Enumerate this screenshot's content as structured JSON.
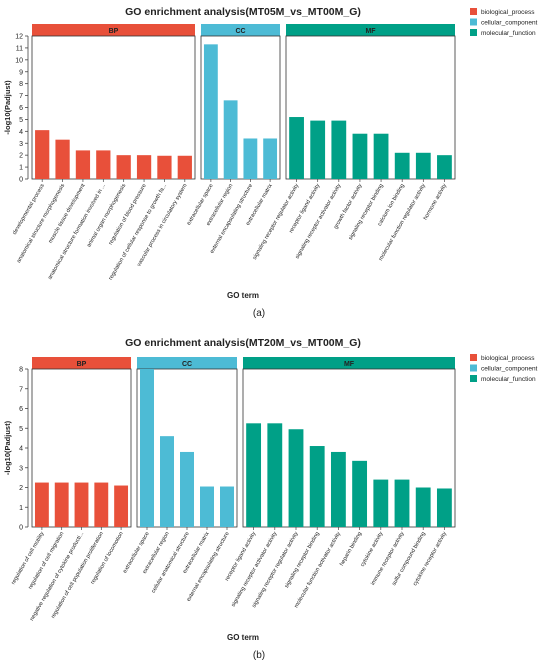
{
  "legend": [
    {
      "key": "BP",
      "label": "biological_process",
      "color": "#e8503a"
    },
    {
      "key": "CC",
      "label": "cellular_component",
      "color": "#4dbbd5"
    },
    {
      "key": "MF",
      "label": "molecular_function",
      "color": "#00a087"
    }
  ],
  "chart_data": [
    {
      "type": "bar",
      "panel_label": "(a)",
      "title": "GO enrichment analysis(MT05M_vs_MT00M_G)",
      "xlabel": "GO term",
      "ylabel": "-log10(Padjust)",
      "ylim": [
        0,
        12
      ],
      "yticks": [
        0,
        1,
        2,
        3,
        4,
        5,
        6,
        7,
        8,
        9,
        10,
        11,
        12
      ],
      "legend_position": "top-right",
      "facets": [
        {
          "key": "BP",
          "label": "BP",
          "categories": [
            "developmental process",
            "anatomical structure morphogenesis",
            "muscle tissue development",
            "anatomical structure formation involved in ...",
            "animal organ morphogenesis",
            "regulation of blood pressure",
            "regulation of cellular response to growth fa...",
            "vascular process in circulatory system"
          ],
          "values": [
            4.1,
            3.3,
            2.4,
            2.4,
            2.0,
            2.0,
            1.95,
            1.95
          ]
        },
        {
          "key": "CC",
          "label": "CC",
          "categories": [
            "extracellular space",
            "extracellular region",
            "external encapsulating structure",
            "extracellular matrix"
          ],
          "values": [
            11.3,
            6.6,
            3.4,
            3.4
          ]
        },
        {
          "key": "MF",
          "label": "MF",
          "categories": [
            "signaling receptor regulator activity",
            "receptor ligand activity",
            "signaling receptor activator activity",
            "growth factor activity",
            "signaling receptor binding",
            "calcium ion binding",
            "molecular function regulator activity",
            "hormone activity"
          ],
          "values": [
            5.2,
            4.9,
            4.9,
            3.8,
            3.8,
            2.2,
            2.2,
            2.0
          ]
        }
      ]
    },
    {
      "type": "bar",
      "panel_label": "(b)",
      "title": "GO enrichment analysis(MT20M_vs_MT00M_G)",
      "xlabel": "GO term",
      "ylabel": "-log10(Padjust)",
      "ylim": [
        0,
        8
      ],
      "yticks": [
        0,
        1,
        2,
        3,
        4,
        5,
        6,
        7,
        8
      ],
      "legend_position": "top-right",
      "facets": [
        {
          "key": "BP",
          "label": "BP",
          "categories": [
            "regulation of cell motility",
            "regulation of cell migration",
            "negative regulation of cytokine producti...",
            "regulation of cell population proliferation",
            "regulation of locomotion"
          ],
          "values": [
            2.25,
            2.25,
            2.25,
            2.25,
            2.1
          ]
        },
        {
          "key": "CC",
          "label": "CC",
          "categories": [
            "extracellular space",
            "extracellular region",
            "cellular anatomical structure",
            "extracellular matrix",
            "external encapsulating structure"
          ],
          "values": [
            8.0,
            4.6,
            3.8,
            2.05,
            2.05
          ]
        },
        {
          "key": "MF",
          "label": "MF",
          "categories": [
            "receptor ligand activity",
            "signaling receptor activator activity",
            "signaling receptor regulator activity",
            "signaling receptor binding",
            "molecular function activator activity",
            "heparin binding",
            "cytokine activity",
            "immune receptor activity",
            "sulfur compound binding",
            "cytokine receptor activity"
          ],
          "values": [
            5.25,
            5.25,
            4.95,
            4.1,
            3.8,
            3.35,
            2.4,
            2.4,
            2.0,
            1.95
          ]
        }
      ]
    }
  ]
}
